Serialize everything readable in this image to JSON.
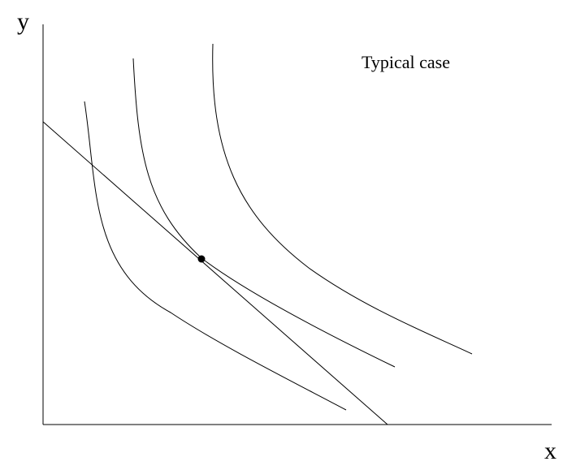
{
  "diagram": {
    "title": "Typical case",
    "axes": {
      "x_label": "x",
      "y_label": "y"
    },
    "elements": {
      "indifference_curves": 3,
      "budget_line": true,
      "tangency_point": "middle indifference curve touches budget line"
    }
  }
}
